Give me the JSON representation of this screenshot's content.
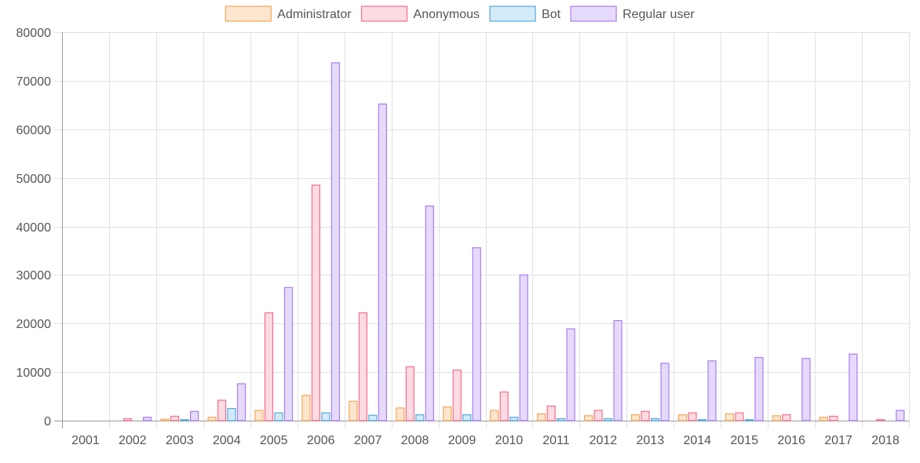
{
  "chart_data": {
    "type": "bar",
    "categories": [
      "2001",
      "2002",
      "2003",
      "2004",
      "2005",
      "2006",
      "2007",
      "2008",
      "2009",
      "2010",
      "2011",
      "2012",
      "2013",
      "2014",
      "2015",
      "2016",
      "2017",
      "2018"
    ],
    "series": [
      {
        "name": "Administrator",
        "values": [
          0,
          0,
          300,
          700,
          2100,
          5200,
          4000,
          2600,
          2800,
          2100,
          1400,
          1000,
          1200,
          1200,
          1400,
          1000,
          700,
          0
        ],
        "color": "#f5a65b",
        "fill": "#fde6cf"
      },
      {
        "name": "Anonymous",
        "values": [
          0,
          400,
          900,
          4200,
          22200,
          48500,
          22200,
          11100,
          10400,
          5900,
          3000,
          2100,
          1900,
          1600,
          1600,
          1200,
          900,
          200
        ],
        "color": "#f2718e",
        "fill": "#fcdbe2"
      },
      {
        "name": "Bot",
        "values": [
          0,
          0,
          200,
          2500,
          1600,
          1600,
          1100,
          1200,
          1200,
          700,
          400,
          400,
          400,
          200,
          200,
          0,
          0,
          0
        ],
        "color": "#55a9e0",
        "fill": "#d4eaf8"
      },
      {
        "name": "Regular user",
        "values": [
          0,
          700,
          1900,
          7600,
          27400,
          73700,
          65200,
          44200,
          35600,
          30000,
          18900,
          20600,
          11800,
          12300,
          13000,
          12800,
          13700,
          2100
        ],
        "color": "#a77ef2",
        "fill": "#e6dafc"
      }
    ],
    "y_ticks": [
      "0",
      "10000",
      "20000",
      "30000",
      "40000",
      "50000",
      "60000",
      "70000",
      "80000"
    ],
    "ylim": [
      0,
      80000
    ],
    "grid": true,
    "legend_position": "top-center"
  }
}
